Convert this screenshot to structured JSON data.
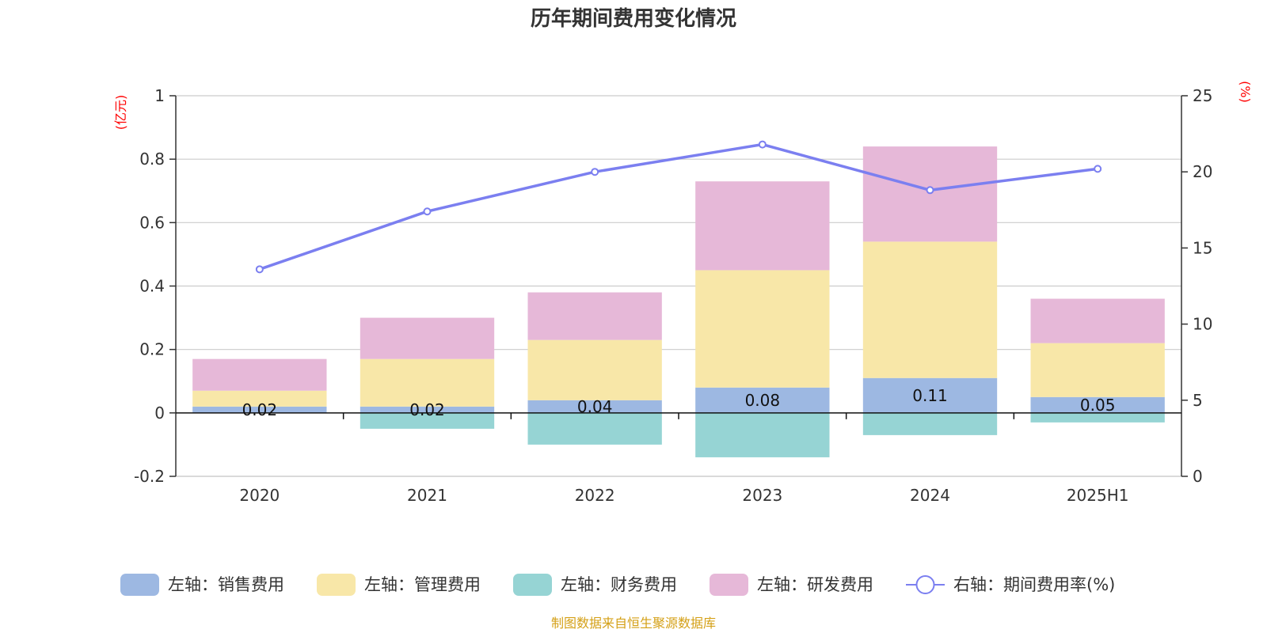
{
  "chart_data": {
    "type": "bar",
    "title": "历年期间费用变化情况",
    "categories": [
      "2020",
      "2021",
      "2022",
      "2023",
      "2024",
      "2025H1"
    ],
    "left_axis": {
      "unit": "(亿元)",
      "ylim": [
        -0.2,
        1
      ],
      "ticks": [
        "1",
        "0.8",
        "0.6",
        "0.4",
        "0.2",
        "0",
        "-0.2"
      ]
    },
    "right_axis": {
      "unit": "(%)",
      "ylim": [
        0,
        25
      ],
      "ticks": [
        "25",
        "20",
        "15",
        "10",
        "5",
        "0"
      ]
    },
    "series": [
      {
        "name": "左轴：销售费用",
        "axis": "left",
        "type": "bar",
        "color": "#9db8e2",
        "values": [
          0.02,
          0.02,
          0.04,
          0.08,
          0.11,
          0.05
        ],
        "labels": [
          "0.02",
          "0.02",
          "0.04",
          "0.08",
          "0.11",
          "0.05"
        ]
      },
      {
        "name": "左轴：管理费用",
        "axis": "left",
        "type": "bar",
        "color": "#f8e7a8",
        "values": [
          0.05,
          0.15,
          0.19,
          0.37,
          0.43,
          0.17
        ]
      },
      {
        "name": "左轴：财务费用",
        "axis": "left",
        "type": "bar",
        "color": "#96d4d4",
        "values": [
          0.0,
          -0.05,
          -0.1,
          -0.14,
          -0.07,
          -0.03
        ]
      },
      {
        "name": "左轴：研发费用",
        "axis": "left",
        "type": "bar",
        "color": "#e6b8d8",
        "values": [
          0.1,
          0.13,
          0.15,
          0.28,
          0.3,
          0.14
        ]
      },
      {
        "name": "右轴：期间费用率(%)",
        "axis": "right",
        "type": "line",
        "color": "#7b7ff0",
        "values": [
          13.6,
          17.4,
          20.0,
          21.8,
          18.8,
          20.2
        ]
      }
    ],
    "legend_position": "bottom",
    "grid": true
  },
  "source": "制图数据来自恒生聚源数据库"
}
